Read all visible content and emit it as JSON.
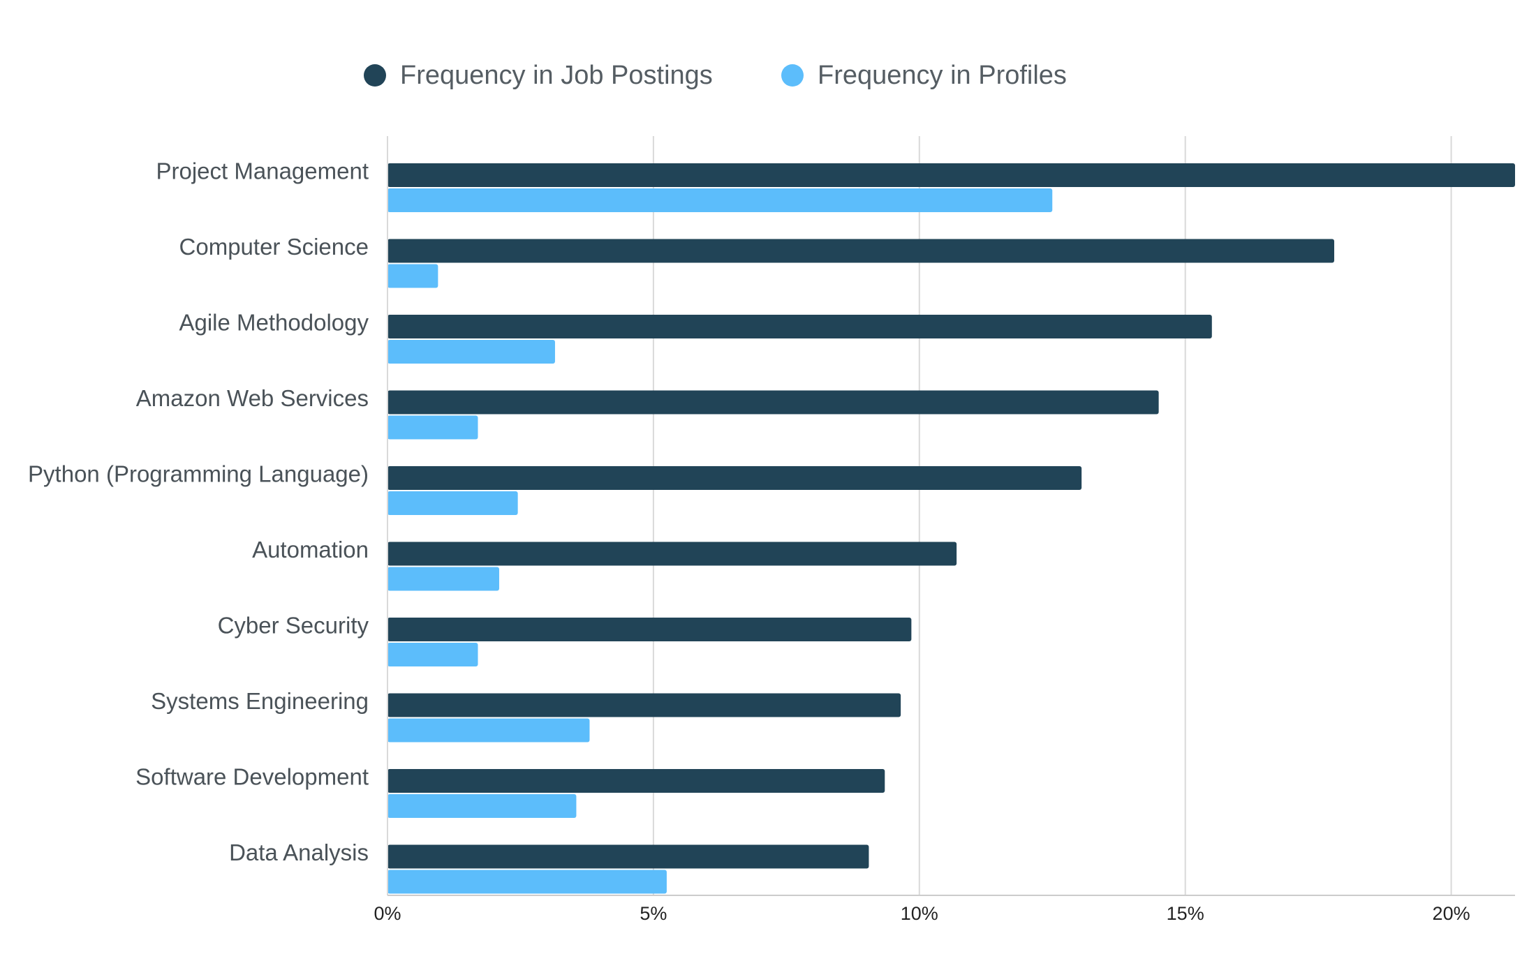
{
  "chart_data": {
    "type": "bar",
    "orientation": "horizontal",
    "categories": [
      "Project Management",
      "Computer Science",
      "Agile Methodology",
      "Amazon Web Services",
      "Python (Programming Language)",
      "Automation",
      "Cyber Security",
      "Systems Engineering",
      "Software Development",
      "Data Analysis"
    ],
    "series": [
      {
        "name": "Frequency in Job Postings",
        "color": "#214457",
        "values": [
          21.2,
          17.8,
          15.5,
          14.5,
          13.05,
          10.7,
          9.85,
          9.65,
          9.35,
          9.05
        ]
      },
      {
        "name": "Frequency in Profiles",
        "color": "#5cbdfb",
        "values": [
          12.5,
          0.95,
          3.15,
          1.7,
          2.45,
          2.1,
          1.7,
          3.8,
          3.55,
          5.25
        ]
      }
    ],
    "xlim": [
      0,
      21.2
    ],
    "xticks": [
      0,
      5,
      10,
      15,
      20
    ],
    "xtick_labels": [
      "0%",
      "5%",
      "10%",
      "15%",
      "20%"
    ],
    "grid": "vertical",
    "legend_position": "top",
    "title": "",
    "xlabel": "",
    "ylabel": ""
  }
}
